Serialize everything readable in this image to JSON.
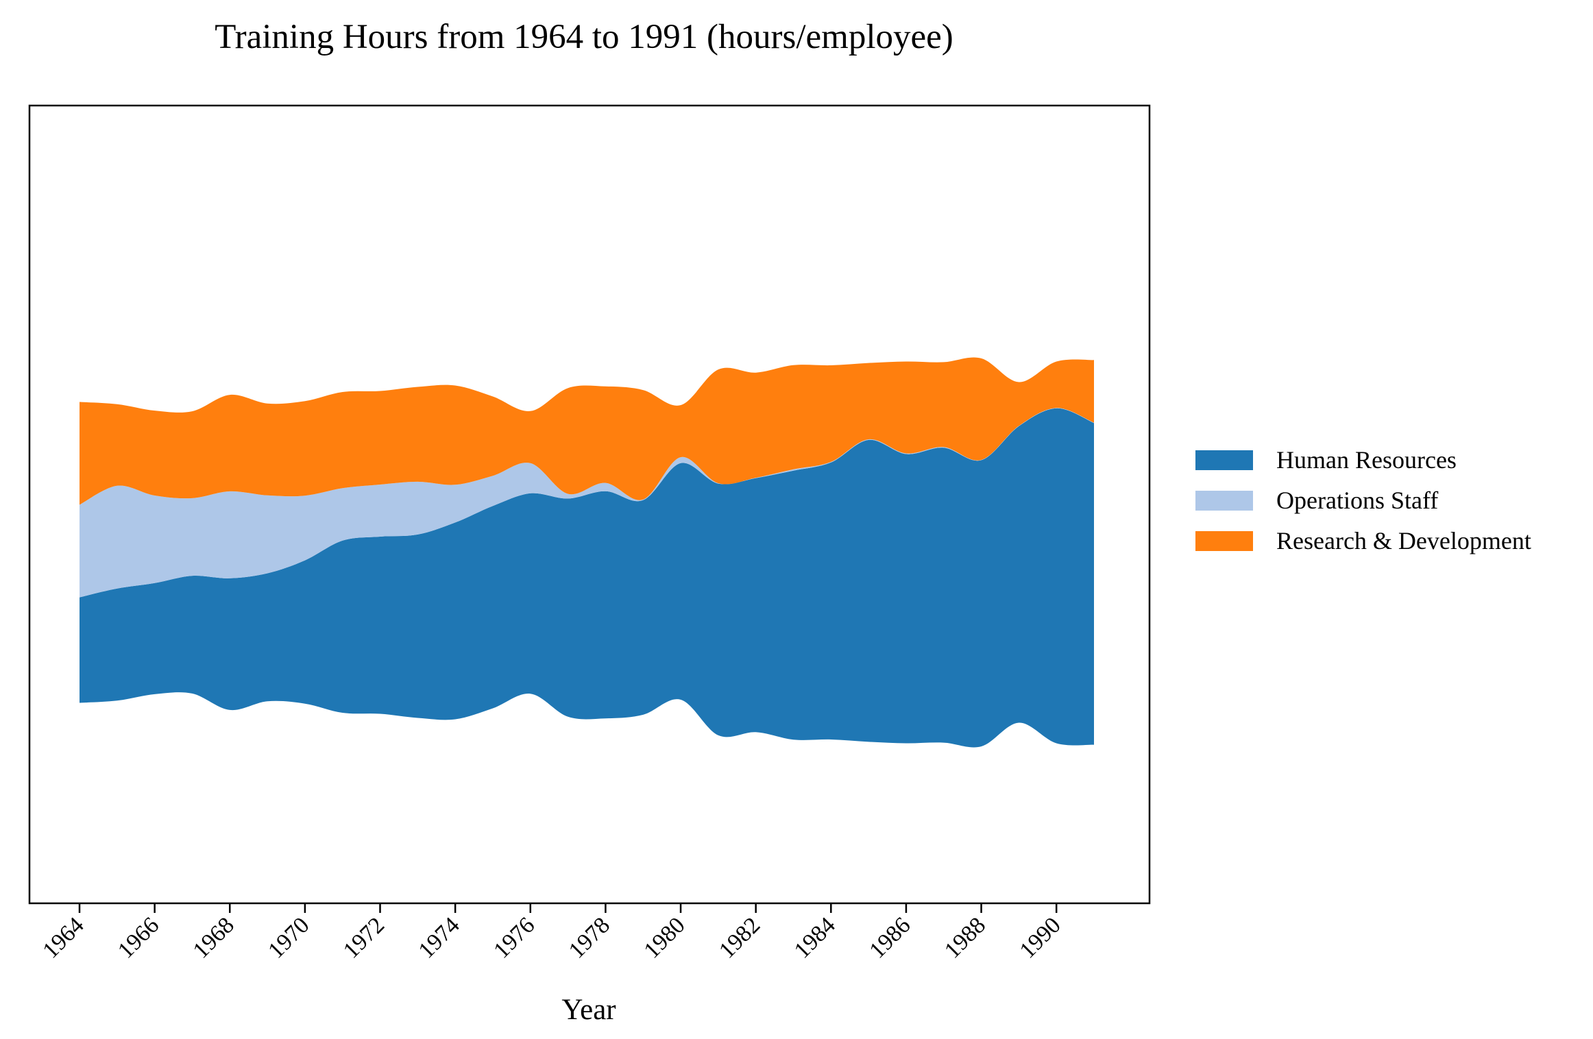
{
  "chart_data": {
    "type": "area",
    "title": "Training Hours from 1964 to 1991 (hours/employee)",
    "xlabel": "Year",
    "ylabel": "",
    "x": [
      1964,
      1965,
      1966,
      1967,
      1968,
      1969,
      1970,
      1971,
      1972,
      1973,
      1974,
      1975,
      1976,
      1977,
      1978,
      1979,
      1980,
      1981,
      1982,
      1983,
      1984,
      1985,
      1986,
      1987,
      1988,
      1989,
      1990,
      1991
    ],
    "x_ticks": [
      "1964",
      "1966",
      "1968",
      "1970",
      "1972",
      "1974",
      "1976",
      "1978",
      "1980",
      "1982",
      "1984",
      "1986",
      "1988",
      "1990"
    ],
    "series": [
      {
        "name": "Human Resources",
        "color": "#1f77b4",
        "values": [
          31.8,
          33.8,
          33.5,
          35.5,
          39.7,
          38.6,
          43.2,
          51.9,
          53.4,
          55.3,
          59.3,
          61.0,
          60.4,
          65.8,
          68.5,
          64.7,
          71.3,
          75.9,
          76.6,
          81.1,
          83.5,
          91.0,
          87.2,
          88.9,
          86.3,
          89.4,
          101.0,
          97.0
        ]
      },
      {
        "name": "Operations Staff",
        "color": "#aec7e8",
        "values": [
          27.9,
          31.0,
          26.4,
          23.4,
          26.2,
          23.5,
          19.5,
          15.8,
          15.7,
          15.9,
          11.4,
          9.1,
          9.1,
          1.4,
          2.5,
          0.2,
          1.8,
          0.1,
          0.1,
          0.4,
          0.2,
          0.2,
          0.2,
          0.2,
          0.1,
          0.1,
          0.1,
          0.1
        ]
      },
      {
        "name": "Research & Development",
        "color": "#ff7f0e",
        "values": [
          31.0,
          24.6,
          25.6,
          26.2,
          29.1,
          27.7,
          28.5,
          29.0,
          28.2,
          28.6,
          29.9,
          23.9,
          15.7,
          31.9,
          29.1,
          33.0,
          15.7,
          34.3,
          31.7,
          31.4,
          29.1,
          23.0,
          27.7,
          25.6,
          30.6,
          13.2,
          14.0,
          18.9
        ]
      }
    ],
    "baseline": "symmetric",
    "legend": "right",
    "grid": false
  }
}
